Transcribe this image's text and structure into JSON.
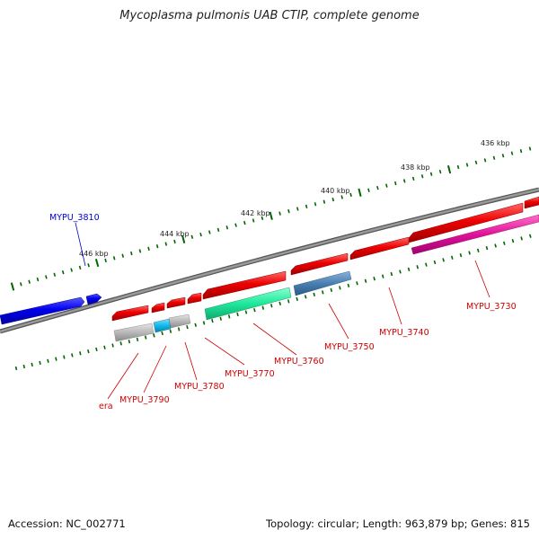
{
  "title": "Mycoplasma pulmonis UAB CTIP, complete genome",
  "footer": {
    "accession_label": "Accession:",
    "accession": "NC_002771",
    "topology_label": "Topology:",
    "topology": "circular",
    "length_label": "Length:",
    "length": "963,879 bp",
    "genes_label": "Genes:",
    "genes": "815"
  },
  "ticks": [
    {
      "label": "436 kbp"
    },
    {
      "label": "438 kbp"
    },
    {
      "label": "440 kbp"
    },
    {
      "label": "442 kbp"
    },
    {
      "label": "444 kbp"
    },
    {
      "label": "446 kbp"
    }
  ],
  "genes": [
    {
      "id": "MYPU_3810",
      "label": "MYPU_3810",
      "strand": "+",
      "color": "#0000ee",
      "label_color": "#0000cc"
    },
    {
      "id": "MYPU_3730",
      "label": "MYPU_3730",
      "strand": "-",
      "color": "#ee0000",
      "label_color": "#cc0000"
    },
    {
      "id": "MYPU_3740",
      "label": "MYPU_3740",
      "strand": "-",
      "color": "#ee0000",
      "label_color": "#cc0000"
    },
    {
      "id": "MYPU_3750",
      "label": "MYPU_3750",
      "strand": "-",
      "color": "#ee0000",
      "label_color": "#cc0000"
    },
    {
      "id": "MYPU_3760",
      "label": "MYPU_3760",
      "strand": "-",
      "color": "#ee0000",
      "label_color": "#cc0000"
    },
    {
      "id": "MYPU_3770",
      "label": "MYPU_3770",
      "strand": "-",
      "color": "#ee0000",
      "label_color": "#cc0000"
    },
    {
      "id": "MYPU_3780",
      "label": "MYPU_3780",
      "strand": "-",
      "color": "#ee0000",
      "label_color": "#cc0000"
    },
    {
      "id": "MYPU_3790",
      "label": "MYPU_3790",
      "strand": "-",
      "color": "#ee0000",
      "label_color": "#cc0000"
    },
    {
      "id": "era",
      "label": "era",
      "strand": "-",
      "color": "#ee0000",
      "label_color": "#cc0000"
    }
  ],
  "colors": {
    "backbone": "#7a7a7a",
    "tick": "#006600",
    "cog_magenta": "#e0119a",
    "cog_steelblue": "#4a7fb0",
    "cog_green": "#1de89a",
    "cog_cyan": "#11b8e8",
    "cog_gray": "#b8b8b8"
  }
}
